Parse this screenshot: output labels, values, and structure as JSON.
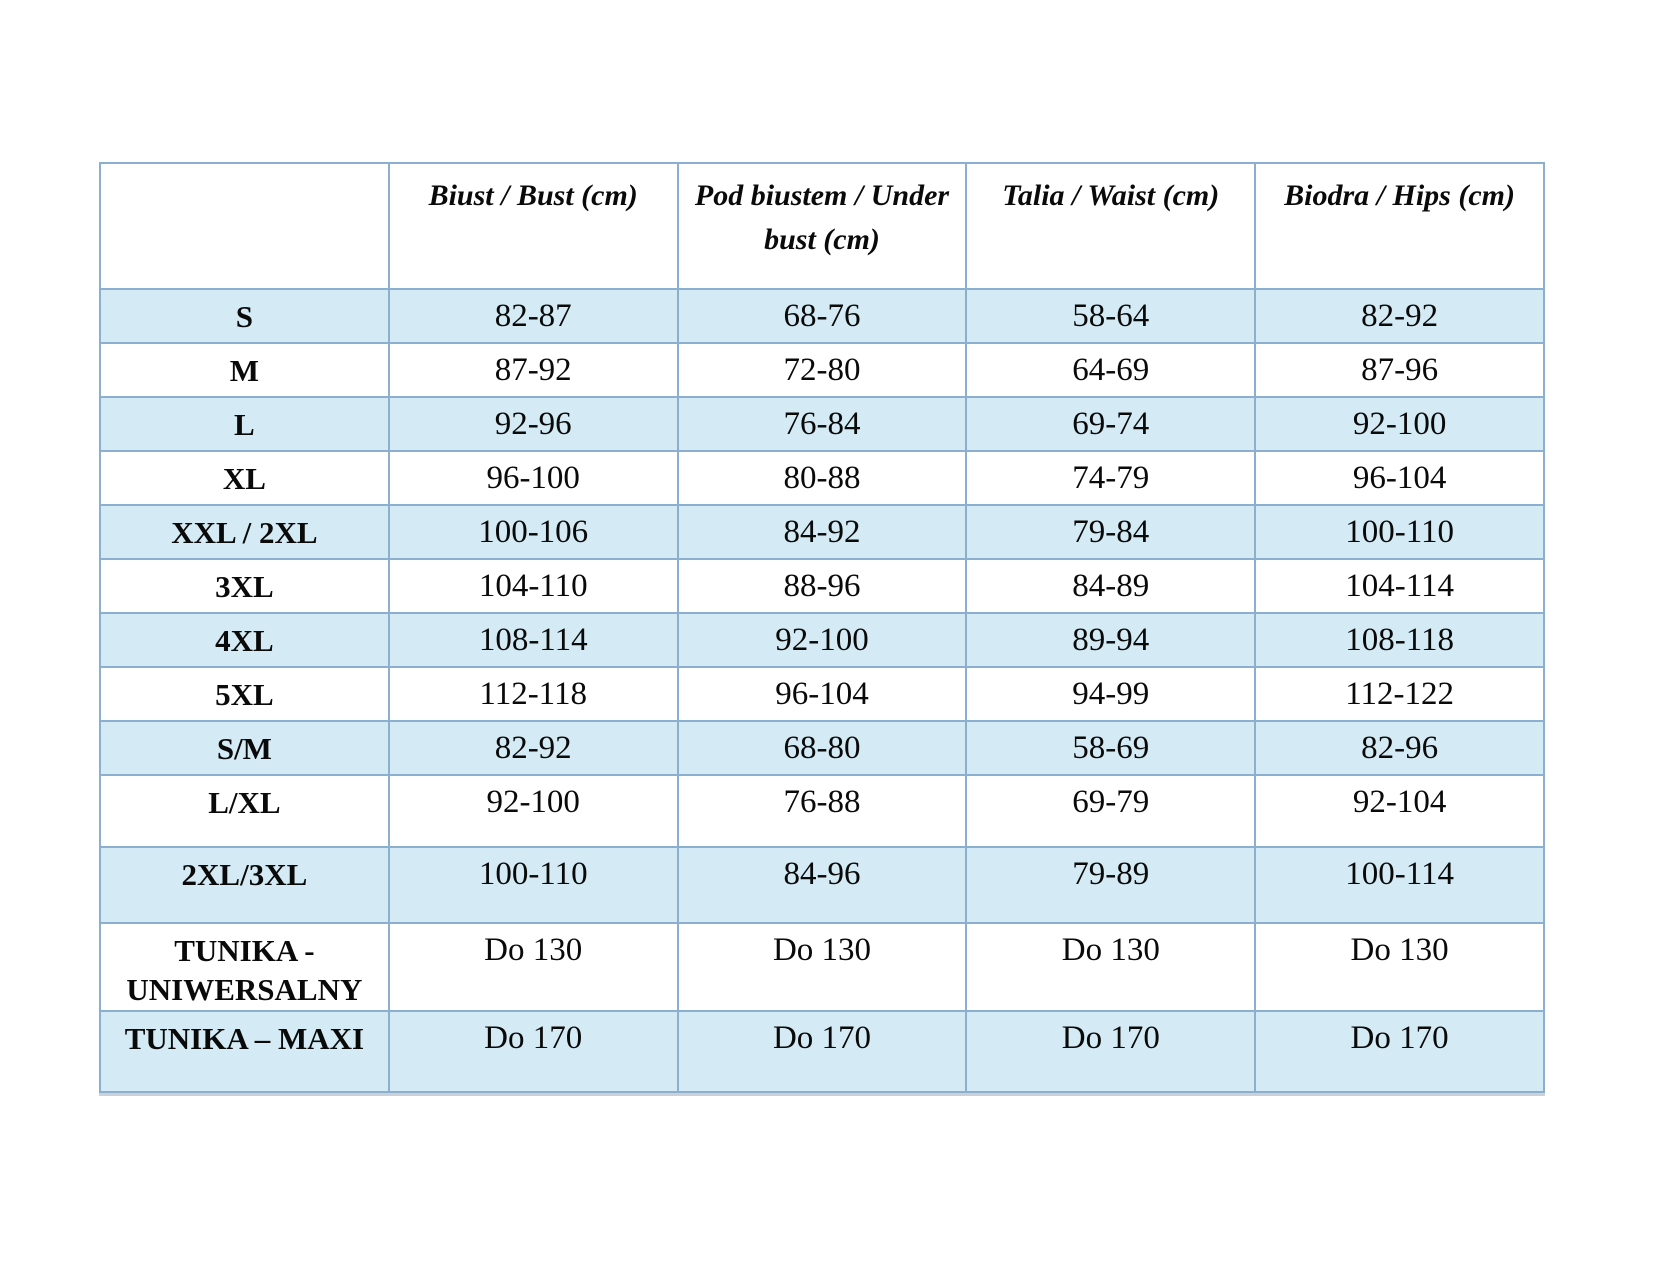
{
  "colors": {
    "row_shade": "#d4eaf4",
    "table_border": "#8caecf",
    "text": "#0a0a0a",
    "background": "#ffffff"
  },
  "table": {
    "columns": [
      "",
      "Biust / Bust (cm)",
      "Pod biustem / Under bust (cm)",
      "Talia / Waist (cm)",
      "Biodra / Hips (cm)"
    ],
    "rows": [
      {
        "label": "S",
        "values": [
          "82-87",
          "68-76",
          "58-64",
          "82-92"
        ]
      },
      {
        "label": "M",
        "values": [
          "87-92",
          "72-80",
          "64-69",
          "87-96"
        ]
      },
      {
        "label": "L",
        "values": [
          "92-96",
          "76-84",
          "69-74",
          "92-100"
        ]
      },
      {
        "label": "XL",
        "values": [
          "96-100",
          "80-88",
          "74-79",
          "96-104"
        ]
      },
      {
        "label": "XXL / 2XL",
        "values": [
          "100-106",
          "84-92",
          "79-84",
          "100-110"
        ]
      },
      {
        "label": "3XL",
        "values": [
          "104-110",
          "88-96",
          "84-89",
          "104-114"
        ]
      },
      {
        "label": "4XL",
        "values": [
          "108-114",
          "92-100",
          "89-94",
          "108-118"
        ]
      },
      {
        "label": "5XL",
        "values": [
          "112-118",
          "96-104",
          "94-99",
          "112-122"
        ]
      },
      {
        "label": "S/M",
        "values": [
          "82-92",
          "68-80",
          "58-69",
          "82-96"
        ]
      },
      {
        "label": "L/XL",
        "values": [
          "92-100",
          "76-88",
          "69-79",
          "92-104"
        ]
      },
      {
        "label": "2XL/3XL",
        "values": [
          "100-110",
          "84-96",
          "79-89",
          "100-114"
        ]
      },
      {
        "label": "TUNIKA - UNIWERSALNY",
        "values": [
          "Do 130",
          "Do 130",
          "Do 130",
          "Do 130"
        ]
      },
      {
        "label": "TUNIKA – MAXI",
        "values": [
          "Do 170",
          "Do 170",
          "Do 170",
          "Do 170"
        ]
      }
    ]
  }
}
